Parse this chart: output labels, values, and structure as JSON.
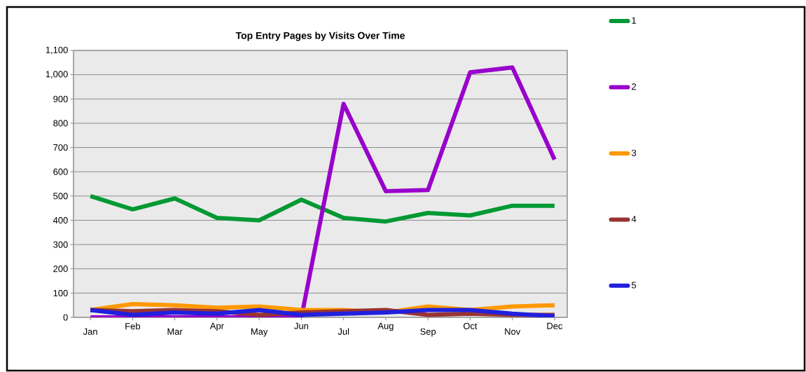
{
  "chart_data": {
    "type": "line",
    "title": "Top Entry Pages by Visits Over Time",
    "categories": [
      "Jan",
      "Feb",
      "Mar",
      "Apr",
      "May",
      "Jun",
      "Jul",
      "Aug",
      "Sep",
      "Oct",
      "Nov",
      "Dec"
    ],
    "series": [
      {
        "name": "1",
        "color": "#009933",
        "values": [
          500,
          445,
          490,
          410,
          400,
          485,
          410,
          395,
          430,
          420,
          460,
          460
        ]
      },
      {
        "name": "2",
        "color": "#9900cc",
        "values": [
          0,
          0,
          0,
          0,
          0,
          0,
          880,
          520,
          525,
          1010,
          1030,
          650
        ]
      },
      {
        "name": "3",
        "color": "#ff9900",
        "values": [
          30,
          55,
          50,
          40,
          45,
          30,
          30,
          20,
          45,
          30,
          45,
          50
        ]
      },
      {
        "name": "4",
        "color": "#993333",
        "values": [
          30,
          25,
          30,
          25,
          10,
          20,
          25,
          30,
          10,
          15,
          10,
          10
        ]
      },
      {
        "name": "5",
        "color": "#2020dd",
        "values": [
          30,
          10,
          20,
          15,
          30,
          10,
          15,
          20,
          30,
          30,
          15,
          5
        ]
      }
    ],
    "ylim": [
      0,
      1100
    ],
    "yticks": [
      0,
      100,
      200,
      300,
      400,
      500,
      600,
      700,
      800,
      900,
      {
        "value": 1000,
        "label": "1,000"
      },
      {
        "value": 1100,
        "label": "1,100"
      }
    ],
    "grid": "y",
    "legend": "right",
    "line_style": "solid",
    "marker": "none"
  }
}
